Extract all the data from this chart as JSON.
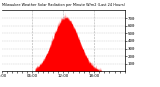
{
  "title": "Milwaukee Weather Solar Radiation per Minute W/m2 (Last 24 Hours)",
  "background_color": "#ffffff",
  "plot_bg_color": "#ffffff",
  "bar_color": "#ff0000",
  "grid_color": "#888888",
  "text_color": "#000000",
  "ylim": [
    0,
    800
  ],
  "yticks": [
    100,
    200,
    300,
    400,
    500,
    600,
    700
  ],
  "num_points": 1440,
  "peak_hour": 12.5,
  "peak_value": 710,
  "sigma_hours": 2.5,
  "sunrise": 6.5,
  "sunset": 19.5
}
